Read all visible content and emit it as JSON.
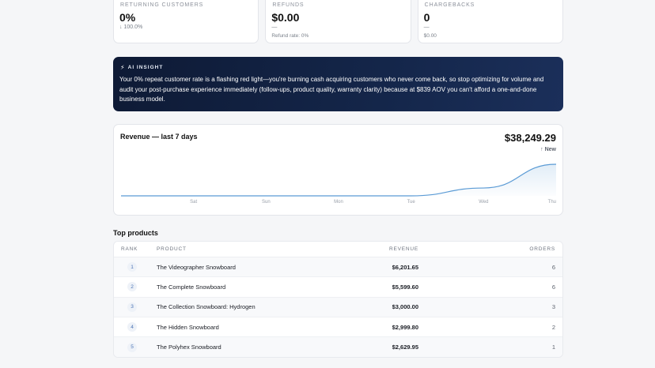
{
  "kpis": [
    {
      "label": "Returning customers",
      "value": "0%",
      "sub": "↓ 100.0%",
      "sub2": ""
    },
    {
      "label": "Refunds",
      "value": "$0.00",
      "sub": "—",
      "sub2": "Refund rate: 0%"
    },
    {
      "label": "Chargebacks",
      "value": "0",
      "sub": "—",
      "sub2": "$0.00"
    }
  ],
  "insight": {
    "label": "AI INSIGHT",
    "text": "Your 0% repeat customer rate is a flashing red light—you're burning cash acquiring customers who never come back, so stop optimizing for volume and audit your post-purchase experience immediately (follow-ups, product quality, warranty clarity) because at $839 AOV you can't afford a one-and-done business model."
  },
  "revenue": {
    "title": "Revenue — last 7 days",
    "total": "$38,249.29",
    "badge": "↑ New"
  },
  "chart_data": {
    "type": "area",
    "categories": [
      "",
      "Sat",
      "Sun",
      "Mon",
      "Tue",
      "Wed",
      "Thu"
    ],
    "values": [
      0,
      0,
      0,
      0,
      0,
      9500,
      38249.29
    ],
    "title": "Revenue — last 7 days",
    "xlabel": "",
    "ylabel": "",
    "color": "#5b9bd5"
  },
  "top_products": {
    "title": "Top products",
    "headers": {
      "rank": "Rank",
      "product": "Product",
      "revenue": "Revenue",
      "orders": "Orders"
    },
    "rows": [
      {
        "rank": "1",
        "product": "The Videographer Snowboard",
        "revenue": "$6,201.65",
        "orders": "6"
      },
      {
        "rank": "2",
        "product": "The Complete Snowboard",
        "revenue": "$5,599.60",
        "orders": "6"
      },
      {
        "rank": "3",
        "product": "The Collection Snowboard: Hydrogen",
        "revenue": "$3,000.00",
        "orders": "3"
      },
      {
        "rank": "4",
        "product": "The Hidden Snowboard",
        "revenue": "$2,999.80",
        "orders": "2"
      },
      {
        "rank": "5",
        "product": "The Polyhex Snowboard",
        "revenue": "$2,629.95",
        "orders": "1"
      }
    ]
  }
}
